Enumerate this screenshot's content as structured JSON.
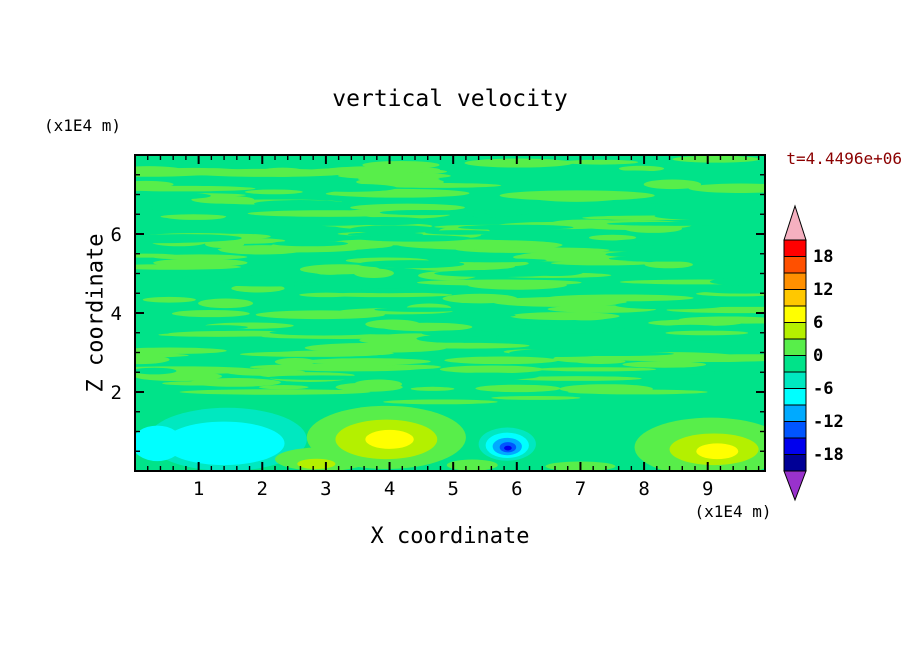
{
  "window": {
    "background": "#ffffff"
  },
  "title": "vertical velocity",
  "annotations": {
    "time_label": "t=4.4496e+06",
    "z_unit_label": "(x1E4 m)",
    "x_unit_label": "(x1E4 m)"
  },
  "axes": {
    "xlabel": "X coordinate",
    "ylabel": "Z coordinate"
  },
  "chart_data": {
    "type": "heatmap",
    "title": "vertical velocity",
    "xlabel": "X coordinate",
    "ylabel": "Z coordinate",
    "x_unit": "(x1E4 m)",
    "z_unit": "(x1E4 m)",
    "time_stamp": "t=4.4496e+06",
    "x_range": [
      0,
      9.9
    ],
    "z_range": [
      0,
      8
    ],
    "x_ticks": [
      1,
      2,
      3,
      4,
      5,
      6,
      7,
      8,
      9
    ],
    "x_minor_step": 0.2,
    "z_ticks": [
      2,
      4,
      6
    ],
    "z_minor_step": 0.5,
    "grid": false,
    "legend_position": "right-colorbar",
    "field": {
      "background_color": "#00e389",
      "background_value_range": [
        -3,
        0
      ],
      "description": "Vertical velocity cross-section: mostly near-zero values. Above z=2e4 m the field is a fine horizontal streaky mix of bands in the 0..+3 range (light green) over a -3..0 background (spring green). Below z=2e4 m the field is smooth with a cyan downdraft pocket near x=1.5, a small strong blue downdraft at x=5.9, and yellow updraft cores near x=4 and x=9.",
      "generated_streaks": [
        {
          "color": "#58ee4a",
          "count": 150,
          "seed": 11,
          "x_min": 0.05,
          "x_max": 9.85,
          "z_min": 2.05,
          "z_max": 7.95,
          "rx_min": 0.3,
          "rx_max": 1.3,
          "rz_min": 0.05,
          "rz_max": 0.13
        },
        {
          "color": "#00e389",
          "count": 60,
          "seed": 99,
          "x_min": 0.05,
          "x_max": 9.85,
          "z_min": 2.1,
          "z_max": 7.9,
          "rx_min": 0.3,
          "rx_max": 1.1,
          "rz_min": 0.05,
          "rz_max": 0.11
        }
      ],
      "features": [
        {
          "x": 1.45,
          "z": 0.8,
          "rx": 1.25,
          "rz": 0.8,
          "color": "#00e8c0"
        },
        {
          "x": 1.4,
          "z": 0.7,
          "rx": 0.95,
          "rz": 0.55,
          "color": "#00ffff"
        },
        {
          "x": 0.35,
          "z": 0.7,
          "rx": 0.4,
          "rz": 0.45,
          "color": "#00ffff"
        },
        {
          "x": 2.95,
          "z": 0.3,
          "rx": 0.75,
          "rz": 0.3,
          "color": "#58ee4a"
        },
        {
          "x": 2.85,
          "z": 0.18,
          "rx": 0.3,
          "rz": 0.13,
          "color": "#b4f000"
        },
        {
          "x": 3.95,
          "z": 0.85,
          "rx": 1.25,
          "rz": 0.8,
          "color": "#58ee4a"
        },
        {
          "x": 3.95,
          "z": 0.8,
          "rx": 0.8,
          "rz": 0.5,
          "color": "#b4f000"
        },
        {
          "x": 4.0,
          "z": 0.8,
          "rx": 0.38,
          "rz": 0.24,
          "color": "#ffff00"
        },
        {
          "x": 5.3,
          "z": 0.15,
          "rx": 0.4,
          "rz": 0.14,
          "color": "#58ee4a"
        },
        {
          "x": 5.85,
          "z": 0.68,
          "rx": 0.45,
          "rz": 0.42,
          "color": "#00e8c0"
        },
        {
          "x": 5.85,
          "z": 0.65,
          "rx": 0.34,
          "rz": 0.32,
          "color": "#00ffff"
        },
        {
          "x": 5.85,
          "z": 0.62,
          "rx": 0.23,
          "rz": 0.22,
          "color": "#00aaff"
        },
        {
          "x": 5.86,
          "z": 0.6,
          "rx": 0.13,
          "rz": 0.13,
          "color": "#0055ff"
        },
        {
          "x": 5.86,
          "z": 0.58,
          "rx": 0.06,
          "rz": 0.06,
          "color": "#0000ee"
        },
        {
          "x": 7.0,
          "z": 0.12,
          "rx": 0.55,
          "rz": 0.12,
          "color": "#58ee4a"
        },
        {
          "x": 9.05,
          "z": 0.6,
          "rx": 1.2,
          "rz": 0.75,
          "color": "#58ee4a"
        },
        {
          "x": 9.1,
          "z": 0.55,
          "rx": 0.7,
          "rz": 0.4,
          "color": "#b4f000"
        },
        {
          "x": 9.15,
          "z": 0.5,
          "rx": 0.33,
          "rz": 0.2,
          "color": "#ffff00"
        },
        {
          "x": 2.2,
          "z": 2.0,
          "rx": 1.5,
          "rz": 0.07,
          "color": "#58ee4a"
        },
        {
          "x": 4.8,
          "z": 1.75,
          "rx": 0.9,
          "rz": 0.06,
          "color": "#58ee4a"
        },
        {
          "x": 6.3,
          "z": 1.85,
          "rx": 0.7,
          "rz": 0.05,
          "color": "#58ee4a"
        },
        {
          "x": 7.9,
          "z": 2.0,
          "rx": 1.1,
          "rz": 0.06,
          "color": "#58ee4a"
        }
      ]
    },
    "colorbar": {
      "labels": [
        "18",
        "12",
        "6",
        "0",
        "-6",
        "-12",
        "-18"
      ],
      "label_values": [
        18,
        12,
        6,
        0,
        -6,
        -12,
        -18
      ],
      "value_min": -21,
      "value_max": 21,
      "over_arrow_color": "#f5b0c0",
      "under_arrow_color": "#9932cc",
      "segments": [
        {
          "hi": 21,
          "lo": 18,
          "color": "#ff0000"
        },
        {
          "hi": 18,
          "lo": 15,
          "color": "#ff5000"
        },
        {
          "hi": 15,
          "lo": 12,
          "color": "#ff9000"
        },
        {
          "hi": 12,
          "lo": 9,
          "color": "#ffc800"
        },
        {
          "hi": 9,
          "lo": 6,
          "color": "#ffff00"
        },
        {
          "hi": 6,
          "lo": 3,
          "color": "#b4f000"
        },
        {
          "hi": 3,
          "lo": 0,
          "color": "#58ee4a"
        },
        {
          "hi": 0,
          "lo": -3,
          "color": "#00e389"
        },
        {
          "hi": -3,
          "lo": -6,
          "color": "#00e8c0"
        },
        {
          "hi": -6,
          "lo": -9,
          "color": "#00ffff"
        },
        {
          "hi": -9,
          "lo": -12,
          "color": "#00aaff"
        },
        {
          "hi": -12,
          "lo": -15,
          "color": "#0055ff"
        },
        {
          "hi": -15,
          "lo": -18,
          "color": "#0000ee"
        },
        {
          "hi": -18,
          "lo": -21,
          "color": "#000096"
        }
      ]
    }
  }
}
